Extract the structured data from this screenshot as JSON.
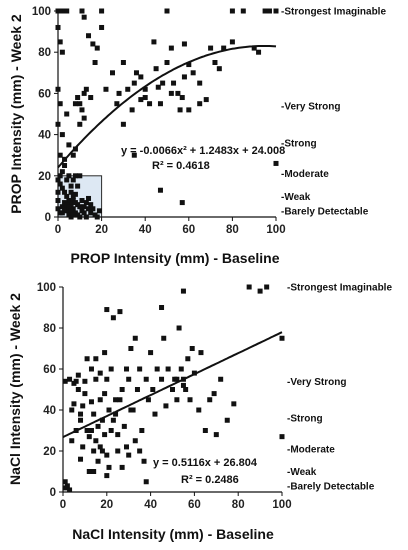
{
  "chart_data": [
    {
      "type": "scatter",
      "xlabel": "PROP Intensity (mm) - Baseline",
      "ylabel": "PROP Intensity (mm) - Week 2",
      "xlim": [
        0,
        100
      ],
      "ylim": [
        0,
        100
      ],
      "xticks": [
        0,
        20,
        40,
        60,
        80,
        100
      ],
      "yticks": [
        0,
        20,
        40,
        60,
        80,
        100
      ],
      "grid": false,
      "highlight_box": {
        "x": [
          0,
          20
        ],
        "y": [
          0,
          20
        ],
        "color": "#dde8f3"
      },
      "anchors": [
        {
          "label": "Strongest Imaginable",
          "value": 100
        },
        {
          "label": "Very Strong",
          "value": 54
        },
        {
          "label": "Strong",
          "value": 36
        },
        {
          "label": "Moderate",
          "value": 21
        },
        {
          "label": "Weak",
          "value": 10
        },
        {
          "label": "Barely Detectable",
          "value": 3
        }
      ],
      "trendline": {
        "type": "polynomial",
        "coefficients": [
          24.008,
          1.2483,
          -0.0066
        ],
        "x_range": [
          0,
          100
        ]
      },
      "equation": "y = -0.0066x² + 1.2483x + 24.008",
      "r_squared": "R² = 0.4618",
      "points": [
        [
          0,
          100
        ],
        [
          1,
          100
        ],
        [
          2,
          100
        ],
        [
          3,
          100
        ],
        [
          4,
          100
        ],
        [
          0,
          92
        ],
        [
          1,
          85
        ],
        [
          2,
          80
        ],
        [
          0,
          62
        ],
        [
          1,
          55
        ],
        [
          0,
          45
        ],
        [
          2,
          40
        ],
        [
          1,
          30
        ],
        [
          3,
          28
        ],
        [
          0,
          18
        ],
        [
          1,
          16
        ],
        [
          2,
          14
        ],
        [
          3,
          12
        ],
        [
          4,
          10
        ],
        [
          5,
          8
        ],
        [
          6,
          6
        ],
        [
          7,
          4
        ],
        [
          8,
          2
        ],
        [
          9,
          1
        ],
        [
          10,
          0
        ],
        [
          11,
          3
        ],
        [
          12,
          5
        ],
        [
          13,
          7
        ],
        [
          14,
          9
        ],
        [
          15,
          2
        ],
        [
          16,
          4
        ],
        [
          17,
          1
        ],
        [
          18,
          0
        ],
        [
          19,
          3
        ],
        [
          2,
          5
        ],
        [
          3,
          7
        ],
        [
          4,
          3
        ],
        [
          5,
          1
        ],
        [
          6,
          0
        ],
        [
          7,
          8
        ],
        [
          8,
          11
        ],
        [
          9,
          6
        ],
        [
          10,
          5
        ],
        [
          11,
          8
        ],
        [
          12,
          2
        ],
        [
          13,
          0
        ],
        [
          14,
          4
        ],
        [
          15,
          6
        ],
        [
          1,
          2
        ],
        [
          2,
          2
        ],
        [
          3,
          4
        ],
        [
          4,
          6
        ],
        [
          5,
          5
        ],
        [
          6,
          3
        ],
        [
          7,
          1
        ],
        [
          8,
          7
        ],
        [
          0,
          8
        ],
        [
          0,
          4
        ],
        [
          0,
          12
        ],
        [
          1,
          20
        ],
        [
          2,
          22
        ],
        [
          3,
          25
        ],
        [
          4,
          18
        ],
        [
          5,
          20
        ],
        [
          6,
          15
        ],
        [
          7,
          18
        ],
        [
          8,
          20
        ],
        [
          6,
          12
        ],
        [
          7,
          10
        ],
        [
          9,
          15
        ],
        [
          10,
          20
        ],
        [
          5,
          35
        ],
        [
          7,
          30
        ],
        [
          8,
          33
        ],
        [
          10,
          45
        ],
        [
          12,
          48
        ],
        [
          10,
          55
        ],
        [
          13,
          62
        ],
        [
          15,
          58
        ],
        [
          17,
          75
        ],
        [
          12,
          97
        ],
        [
          14,
          88
        ],
        [
          18,
          82
        ],
        [
          20,
          100
        ],
        [
          20,
          92
        ],
        [
          11,
          100
        ],
        [
          16,
          84
        ],
        [
          4,
          50
        ],
        [
          8,
          55
        ],
        [
          9,
          58
        ],
        [
          11,
          52
        ],
        [
          12,
          60
        ],
        [
          22,
          62
        ],
        [
          25,
          70
        ],
        [
          27,
          55
        ],
        [
          30,
          45
        ],
        [
          30,
          75
        ],
        [
          32,
          62
        ],
        [
          34,
          52
        ],
        [
          35,
          30
        ],
        [
          35,
          65
        ],
        [
          36,
          70
        ],
        [
          38,
          57
        ],
        [
          38,
          68
        ],
        [
          40,
          62
        ],
        [
          42,
          55
        ],
        [
          44,
          85
        ],
        [
          45,
          72
        ],
        [
          47,
          55
        ],
        [
          48,
          65
        ],
        [
          50,
          100
        ],
        [
          50,
          75
        ],
        [
          52,
          60
        ],
        [
          53,
          65
        ],
        [
          55,
          60
        ],
        [
          57,
          58
        ],
        [
          58,
          68
        ],
        [
          60,
          52
        ],
        [
          62,
          70
        ],
        [
          65,
          55
        ],
        [
          68,
          57
        ],
        [
          70,
          82
        ],
        [
          72,
          75
        ],
        [
          74,
          72
        ],
        [
          76,
          82
        ],
        [
          80,
          100
        ],
        [
          80,
          85
        ],
        [
          85,
          100
        ],
        [
          90,
          82
        ],
        [
          92,
          80
        ],
        [
          95,
          100
        ],
        [
          97,
          100
        ],
        [
          100,
          100
        ],
        [
          100,
          26
        ],
        [
          47,
          13
        ],
        [
          57,
          7
        ],
        [
          65,
          65
        ],
        [
          58,
          84
        ],
        [
          40,
          58
        ],
        [
          46,
          63
        ],
        [
          60,
          74
        ],
        [
          52,
          82
        ],
        [
          56,
          52
        ],
        [
          28,
          60
        ]
      ]
    },
    {
      "type": "scatter",
      "xlabel": "NaCl Intensity (mm) - Baseline",
      "ylabel": "NaCl Intensity (mm) - Week 2",
      "xlim": [
        0,
        100
      ],
      "ylim": [
        0,
        100
      ],
      "xticks": [
        0,
        20,
        40,
        60,
        80,
        100
      ],
      "yticks": [
        0,
        20,
        40,
        60,
        80,
        100
      ],
      "grid": false,
      "anchors": [
        {
          "label": "Strongest Imaginable",
          "value": 100
        },
        {
          "label": "Very Strong",
          "value": 54
        },
        {
          "label": "Strong",
          "value": 36
        },
        {
          "label": "Moderate",
          "value": 21
        },
        {
          "label": "Weak",
          "value": 10
        },
        {
          "label": "Barely Detectable",
          "value": 3
        }
      ],
      "trendline": {
        "type": "polynomial",
        "coefficients": [
          26.804,
          0.5116
        ],
        "x_range": [
          0,
          100
        ]
      },
      "equation": "y = 0.5116x + 26.804",
      "r_squared": "R² = 0.2486",
      "points": [
        [
          1,
          5
        ],
        [
          1,
          2
        ],
        [
          2,
          3
        ],
        [
          3,
          1
        ],
        [
          1,
          54
        ],
        [
          3,
          55
        ],
        [
          4,
          40
        ],
        [
          5,
          43
        ],
        [
          4,
          25
        ],
        [
          6,
          30
        ],
        [
          6,
          54
        ],
        [
          7,
          57
        ],
        [
          8,
          38
        ],
        [
          8,
          35
        ],
        [
          9,
          22
        ],
        [
          10,
          54
        ],
        [
          10,
          48
        ],
        [
          11,
          30
        ],
        [
          12,
          27
        ],
        [
          12,
          10
        ],
        [
          13,
          60
        ],
        [
          13,
          44
        ],
        [
          14,
          38
        ],
        [
          14,
          20
        ],
        [
          15,
          65
        ],
        [
          15,
          25
        ],
        [
          16,
          32
        ],
        [
          16,
          15
        ],
        [
          17,
          58
        ],
        [
          17,
          45
        ],
        [
          18,
          35
        ],
        [
          18,
          20
        ],
        [
          19,
          68
        ],
        [
          19,
          28
        ],
        [
          20,
          55
        ],
        [
          20,
          18
        ],
        [
          21,
          40
        ],
        [
          21,
          12
        ],
        [
          22,
          60
        ],
        [
          22,
          30
        ],
        [
          23,
          85
        ],
        [
          24,
          38
        ],
        [
          25,
          20
        ],
        [
          26,
          45
        ],
        [
          27,
          50
        ],
        [
          28,
          32
        ],
        [
          29,
          22
        ],
        [
          30,
          55
        ],
        [
          30,
          18
        ],
        [
          31,
          70
        ],
        [
          32,
          40
        ],
        [
          33,
          25
        ],
        [
          34,
          50
        ],
        [
          35,
          60
        ],
        [
          36,
          30
        ],
        [
          37,
          15
        ],
        [
          38,
          55
        ],
        [
          39,
          45
        ],
        [
          40,
          68
        ],
        [
          41,
          50
        ],
        [
          42,
          38
        ],
        [
          43,
          60
        ],
        [
          45,
          55
        ],
        [
          46,
          75
        ],
        [
          47,
          42
        ],
        [
          48,
          60
        ],
        [
          50,
          50
        ],
        [
          51,
          55
        ],
        [
          52,
          45
        ],
        [
          53,
          80
        ],
        [
          54,
          60
        ],
        [
          55,
          55
        ],
        [
          55,
          98
        ],
        [
          56,
          50
        ],
        [
          57,
          65
        ],
        [
          58,
          45
        ],
        [
          59,
          70
        ],
        [
          60,
          58
        ],
        [
          62,
          40
        ],
        [
          63,
          68
        ],
        [
          65,
          30
        ],
        [
          67,
          45
        ],
        [
          69,
          48
        ],
        [
          70,
          28
        ],
        [
          72,
          55
        ],
        [
          75,
          35
        ],
        [
          78,
          43
        ],
        [
          85,
          100
        ],
        [
          90,
          98
        ],
        [
          93,
          100
        ],
        [
          100,
          75
        ],
        [
          100,
          27
        ],
        [
          5,
          53
        ],
        [
          7,
          50
        ],
        [
          9,
          42
        ],
        [
          11,
          65
        ],
        [
          13,
          30
        ],
        [
          15,
          55
        ],
        [
          17,
          22
        ],
        [
          19,
          48
        ],
        [
          23,
          35
        ],
        [
          25,
          28
        ],
        [
          27,
          12
        ],
        [
          29,
          60
        ],
        [
          31,
          40
        ],
        [
          33,
          75
        ],
        [
          35,
          20
        ],
        [
          20,
          89
        ],
        [
          26,
          88
        ],
        [
          38,
          5
        ],
        [
          45,
          90
        ],
        [
          52,
          55
        ],
        [
          55,
          52
        ],
        [
          20,
          8
        ],
        [
          14,
          10
        ],
        [
          8,
          16
        ],
        [
          24,
          45
        ]
      ]
    }
  ]
}
